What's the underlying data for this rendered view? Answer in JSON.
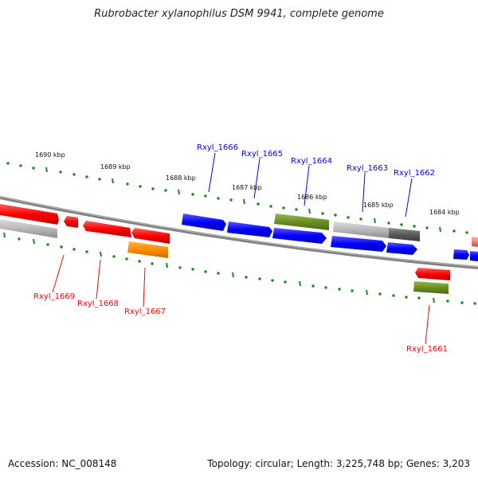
{
  "title": "Rubrobacter xylanophilus DSM 9941, complete genome",
  "footer": {
    "accession": "Accession: NC_008148",
    "stats": "Topology: circular; Length: 3,225,748 bp; Genes: 3,203"
  },
  "colors": {
    "red": "#ff0000",
    "blue": "#0000ff",
    "olive": "#6b8e23",
    "orange": "#ff8c00",
    "grey": "#b4b4b4",
    "darkgrey": "#5a5a5a",
    "pink": "#f08080",
    "tick": "#1a8a1a",
    "backbone": "#808080"
  },
  "kbp_labels": [
    "1690 kbp",
    "1689 kbp",
    "1688 kbp",
    "1687 kbp",
    "1686 kbp",
    "1685 kbp",
    "1684 kbp"
  ],
  "gene_labels": {
    "forward": [
      "Rxyl_1666",
      "Rxyl_1665",
      "Rxyl_1664",
      "Rxyl_1663",
      "Rxyl_1662"
    ],
    "reverse": [
      "Rxyl_1669",
      "Rxyl_1668",
      "Rxyl_1667",
      "Rxyl_1661"
    ]
  }
}
